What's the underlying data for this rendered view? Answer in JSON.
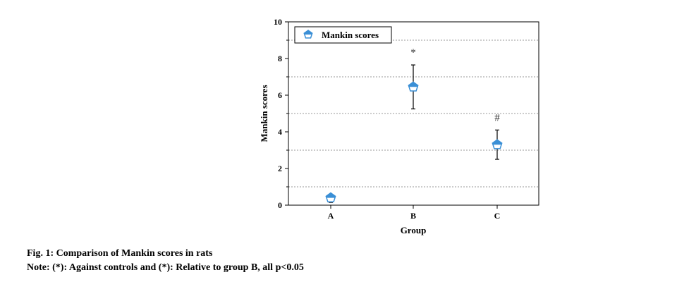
{
  "chart_data": {
    "type": "scatter",
    "categories": [
      "A",
      "B",
      "C"
    ],
    "series": [
      {
        "name": "Mankin scores",
        "values": [
          0.4,
          6.45,
          3.3
        ],
        "error_low": [
          0.15,
          5.25,
          2.5
        ],
        "error_high": [
          0.5,
          7.65,
          4.1
        ],
        "color": "#3a8fd6"
      }
    ],
    "significance_marks": [
      "",
      "*",
      "#"
    ],
    "xlabel": "Group",
    "ylabel": "Mankin scores",
    "ylim": [
      0,
      10
    ],
    "yticks": [
      0,
      2,
      4,
      6,
      8,
      10
    ],
    "grid": "horizontal dotted",
    "legend_position": "top-left"
  },
  "caption": {
    "title": "Fig. 1: Comparison of Mankin scores in rats",
    "note": "Note: (*): Against controls and (*): Relative to group B, all p<0.05"
  }
}
